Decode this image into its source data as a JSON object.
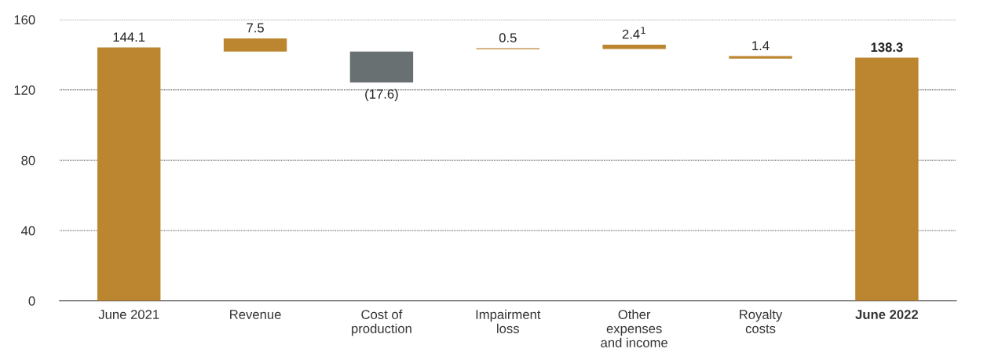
{
  "chart_data": {
    "type": "bar",
    "categories": [
      "June 2021",
      "Revenue",
      "Cost of\nproduction",
      "Impairment\nloss",
      "Other\nexpenses\nand income",
      "Royalty\ncosts",
      "June 2022"
    ],
    "values": [
      144.1,
      7.5,
      -17.6,
      0.5,
      2.4,
      1.4,
      138.3
    ],
    "base": [
      0,
      141.8,
      141.8,
      143.2,
      143.3,
      137.8,
      0
    ],
    "colors": [
      "#bc8630",
      "#bc8630",
      "#687071",
      "#bc8630",
      "#bc8630",
      "#bc8630",
      "#bc8630"
    ],
    "value_labels": [
      "144.1",
      "7.5",
      "(17.6)",
      "0.5",
      "2.4$^{1}$",
      "1.4",
      "138.3"
    ],
    "ylim": [
      0,
      160
    ],
    "yticks": [
      0,
      40,
      80,
      120,
      160
    ],
    "grid": "y"
  }
}
